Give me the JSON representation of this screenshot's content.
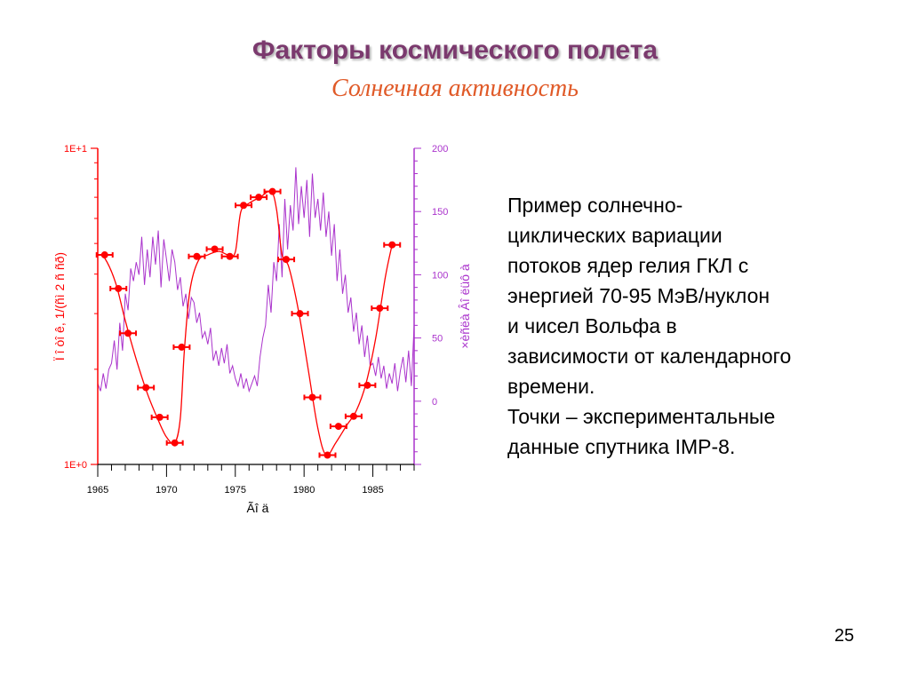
{
  "slide": {
    "title": "Факторы космического полета",
    "subtitle": "Солнечная активность",
    "page_number": "25"
  },
  "description": {
    "lines": [
      "Пример солнечно-",
      "циклических вариации",
      "потоков ядер гелия ГКЛ с",
      "энергией 70-95 МэВ/нуклон",
      "и чисел Вольфа в",
      "зависимости от календарного",
      "времени.",
      "Точки – экспериментальные",
      "данные спутника IMP-8."
    ]
  },
  "chart_data": {
    "type": "line",
    "xlabel": "Ãî ä",
    "ylabel": "Ï î òî ê, 1/(ñì 2 ñ ñð)",
    "y2label": "×èñëà Âî ëüô à",
    "xlim": [
      1965,
      1988
    ],
    "x_ticks": [
      "1965",
      "1970",
      "1975",
      "1980",
      "1985"
    ],
    "y_scale": "log",
    "ylim": [
      1,
      10
    ],
    "y_ticks": [
      "1E+0",
      "1E+1"
    ],
    "y2lim": [
      -50,
      200
    ],
    "y2_ticks": [
      "0",
      "50",
      "100",
      "150",
      "200"
    ],
    "grid": false,
    "series": [
      {
        "kind": "points",
        "color": "#ff0000",
        "x": [
          1965.5,
          1966.5,
          1967.2,
          1968.5,
          1969.5,
          1970.6,
          1971.1,
          1972.2,
          1973.5,
          1974.6,
          1975.6,
          1976.7,
          1977.7,
          1978.7,
          1979.7,
          1980.6,
          1981.7,
          1982.5,
          1983.6,
          1984.6,
          1985.5,
          1986.4
        ],
        "y": [
          4.6,
          3.6,
          2.6,
          1.75,
          1.41,
          1.17,
          2.35,
          4.55,
          4.8,
          4.55,
          6.6,
          7.0,
          7.3,
          4.45,
          3.0,
          1.63,
          1.07,
          1.32,
          1.42,
          1.78,
          3.12,
          4.95
        ]
      },
      {
        "kind": "line",
        "color": "#ff0000",
        "x": [
          1965.0,
          1965.5,
          1966.3,
          1967.0,
          1967.8,
          1968.6,
          1969.4,
          1970.0,
          1970.6,
          1971.0,
          1971.3,
          1971.7,
          1972.3,
          1973.0,
          1973.8,
          1974.5,
          1975.0,
          1975.4,
          1976.0,
          1976.8,
          1977.6,
          1978.0,
          1978.4,
          1978.9,
          1979.6,
          1980.3,
          1981.0,
          1981.6,
          1982.3,
          1983.1,
          1983.8,
          1984.5,
          1985.2,
          1985.9,
          1986.4
        ],
        "y": [
          4.6,
          4.5,
          3.75,
          2.85,
          2.15,
          1.68,
          1.38,
          1.22,
          1.17,
          1.4,
          2.3,
          3.55,
          4.4,
          4.6,
          4.72,
          4.6,
          4.7,
          6.3,
          6.7,
          7.0,
          7.3,
          6.4,
          4.6,
          4.2,
          3.05,
          2.0,
          1.3,
          1.07,
          1.17,
          1.33,
          1.48,
          1.8,
          2.5,
          3.9,
          4.95
        ]
      },
      {
        "kind": "line",
        "color": "#aa33cc",
        "axis": "y2",
        "x": [
          1965.0,
          1965.2,
          1965.4,
          1965.6,
          1965.8,
          1966.0,
          1966.2,
          1966.4,
          1966.6,
          1966.8,
          1967.0,
          1967.2,
          1967.4,
          1967.6,
          1967.8,
          1968.0,
          1968.2,
          1968.4,
          1968.6,
          1968.8,
          1969.0,
          1969.2,
          1969.4,
          1969.6,
          1969.8,
          1970.0,
          1970.2,
          1970.4,
          1970.6,
          1970.8,
          1971.0,
          1971.2,
          1971.4,
          1971.6,
          1971.8,
          1972.0,
          1972.2,
          1972.4,
          1972.6,
          1972.8,
          1973.0,
          1973.2,
          1973.4,
          1973.6,
          1973.8,
          1974.0,
          1974.2,
          1974.4,
          1974.6,
          1974.8,
          1975.0,
          1975.2,
          1975.4,
          1975.6,
          1975.8,
          1976.0,
          1976.2,
          1976.4,
          1976.6,
          1976.8,
          1977.0,
          1977.2,
          1977.4,
          1977.6,
          1977.8,
          1978.0,
          1978.2,
          1978.4,
          1978.6,
          1978.8,
          1979.0,
          1979.2,
          1979.4,
          1979.6,
          1979.8,
          1980.0,
          1980.2,
          1980.4,
          1980.6,
          1980.8,
          1981.0,
          1981.2,
          1981.4,
          1981.6,
          1981.8,
          1982.0,
          1982.2,
          1982.4,
          1982.6,
          1982.8,
          1983.0,
          1983.2,
          1983.4,
          1983.6,
          1983.8,
          1984.0,
          1984.2,
          1984.4,
          1984.6,
          1984.8,
          1985.0,
          1985.2,
          1985.4,
          1985.6,
          1985.8,
          1986.0,
          1986.2,
          1986.4,
          1986.6,
          1986.8,
          1987.0,
          1987.2,
          1987.4,
          1987.6,
          1987.8,
          1988.0
        ],
        "y": [
          14,
          8,
          22,
          10,
          25,
          30,
          48,
          25,
          62,
          40,
          85,
          72,
          105,
          95,
          110,
          100,
          130,
          92,
          120,
          98,
          130,
          108,
          135,
          90,
          128,
          112,
          95,
          120,
          110,
          88,
          98,
          75,
          85,
          65,
          82,
          78,
          62,
          70,
          50,
          55,
          45,
          58,
          32,
          40,
          28,
          42,
          30,
          45,
          22,
          28,
          18,
          12,
          22,
          10,
          18,
          8,
          14,
          20,
          12,
          35,
          50,
          60,
          92,
          70,
          110,
          95,
          140,
          98,
          160,
          120,
          155,
          135,
          185,
          140,
          170,
          145,
          175,
          130,
          180,
          145,
          160,
          135,
          165,
          130,
          150,
          115,
          140,
          95,
          120,
          85,
          100,
          70,
          82,
          55,
          70,
          45,
          60,
          35,
          52,
          28,
          30,
          20,
          35,
          18,
          28,
          10,
          22,
          14,
          30,
          8,
          24,
          35,
          15,
          40,
          12,
          60
        ]
      }
    ]
  }
}
